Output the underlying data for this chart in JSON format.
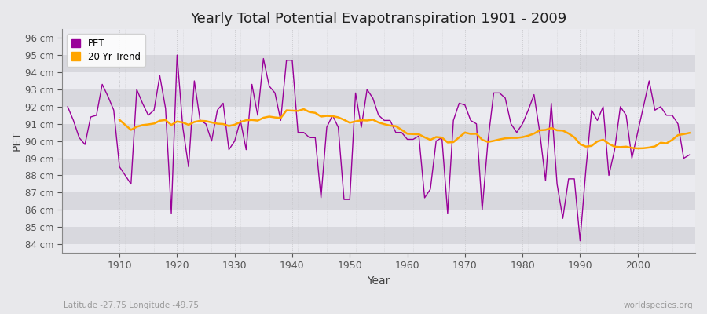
{
  "title": "Yearly Total Potential Evapotranspiration 1901 - 2009",
  "xlabel": "Year",
  "ylabel": "PET",
  "subtitle_left": "Latitude -27.75 Longitude -49.75",
  "subtitle_right": "worldspecies.org",
  "pet_color": "#990099",
  "trend_color": "#FFA500",
  "background_color": "#e8e8eb",
  "plot_bg_color": "#e0e0e5",
  "band_light": "#ebebf0",
  "band_dark": "#d8d8de",
  "grid_v_color": "#c8c8cc",
  "ylim": [
    83.5,
    96.5
  ],
  "yticks": [
    84,
    85,
    86,
    87,
    88,
    89,
    90,
    91,
    92,
    93,
    94,
    95,
    96
  ],
  "years": [
    1901,
    1902,
    1903,
    1904,
    1905,
    1906,
    1907,
    1908,
    1909,
    1910,
    1911,
    1912,
    1913,
    1914,
    1915,
    1916,
    1917,
    1918,
    1919,
    1920,
    1921,
    1922,
    1923,
    1924,
    1925,
    1926,
    1927,
    1928,
    1929,
    1930,
    1931,
    1932,
    1933,
    1934,
    1935,
    1936,
    1937,
    1938,
    1939,
    1940,
    1941,
    1942,
    1943,
    1944,
    1945,
    1946,
    1947,
    1948,
    1949,
    1950,
    1951,
    1952,
    1953,
    1954,
    1955,
    1956,
    1957,
    1958,
    1959,
    1960,
    1961,
    1962,
    1963,
    1964,
    1965,
    1966,
    1967,
    1968,
    1969,
    1970,
    1971,
    1972,
    1973,
    1974,
    1975,
    1976,
    1977,
    1978,
    1979,
    1980,
    1981,
    1982,
    1983,
    1984,
    1985,
    1986,
    1987,
    1988,
    1989,
    1990,
    1991,
    1992,
    1993,
    1994,
    1995,
    1996,
    1997,
    1998,
    1999,
    2000,
    2001,
    2002,
    2003,
    2004,
    2005,
    2006,
    2007,
    2008,
    2009
  ],
  "pet_values": [
    92.0,
    91.2,
    90.2,
    89.8,
    91.4,
    91.5,
    93.3,
    92.6,
    91.8,
    88.5,
    88.0,
    87.5,
    93.0,
    92.2,
    91.5,
    91.8,
    93.8,
    91.9,
    85.8,
    95.0,
    90.8,
    88.5,
    93.5,
    91.2,
    91.0,
    90.0,
    91.8,
    92.2,
    89.5,
    90.0,
    91.2,
    89.5,
    93.3,
    91.5,
    94.8,
    93.2,
    92.8,
    91.2,
    94.7,
    94.7,
    90.5,
    90.5,
    90.2,
    90.2,
    86.7,
    90.8,
    91.5,
    90.8,
    86.6,
    86.6,
    92.8,
    90.8,
    93.0,
    92.5,
    91.5,
    91.2,
    91.2,
    90.5,
    90.5,
    90.1,
    90.1,
    90.3,
    86.7,
    87.2,
    90.0,
    90.2,
    85.8,
    91.2,
    92.2,
    92.1,
    91.2,
    91.0,
    86.0,
    90.0,
    92.8,
    92.8,
    92.5,
    91.0,
    90.5,
    91.0,
    91.8,
    92.7,
    90.5,
    87.7,
    92.2,
    87.5,
    85.5,
    87.8,
    87.8,
    84.2,
    88.3,
    91.8,
    91.2,
    92.0,
    88.0,
    89.5,
    92.0,
    91.5,
    89.0,
    90.5,
    92.0,
    93.5,
    91.8,
    92.0,
    91.5,
    91.5,
    91.0,
    89.0,
    89.2
  ],
  "xticks": [
    1910,
    1920,
    1930,
    1940,
    1950,
    1960,
    1970,
    1980,
    1990,
    2000
  ],
  "legend_pet": "PET",
  "legend_trend": "20 Yr Trend"
}
